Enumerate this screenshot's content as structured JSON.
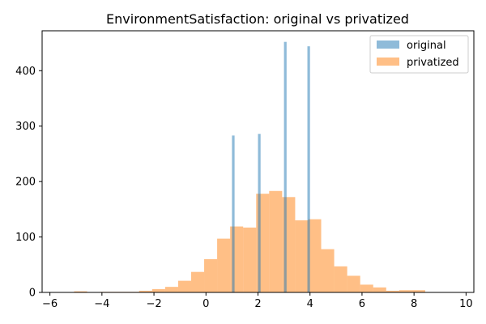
{
  "chart_data": {
    "type": "histogram",
    "title": "EnvironmentSatisfaction: original vs privatized",
    "xlabel": "",
    "ylabel": "",
    "xlim": [
      -6.3,
      10.3
    ],
    "ylim": [
      0,
      472
    ],
    "xticks": [
      -6,
      -4,
      -2,
      0,
      2,
      4,
      6,
      8,
      10
    ],
    "xtick_labels": [
      "−6",
      "−4",
      "−2",
      "0",
      "2",
      "4",
      "6",
      "8",
      "10"
    ],
    "yticks": [
      0,
      100,
      200,
      300,
      400
    ],
    "ytick_labels": [
      "0",
      "100",
      "200",
      "300",
      "400"
    ],
    "grid": false,
    "legend": {
      "position": "upper right"
    },
    "series": [
      {
        "name": "original",
        "color": "#1f77b4",
        "alpha": 0.5,
        "bins": [
          {
            "x0": 1.0,
            "x1": 1.1,
            "count": 283
          },
          {
            "x0": 2.0,
            "x1": 2.1,
            "count": 286
          },
          {
            "x0": 3.0,
            "x1": 3.1,
            "count": 452
          },
          {
            "x0": 3.9,
            "x1": 4.0,
            "count": 444
          }
        ]
      },
      {
        "name": "privatized",
        "color": "#ff7f0e",
        "alpha": 0.5,
        "bins": [
          {
            "x0": -5.07,
            "x1": -4.57,
            "count": 2
          },
          {
            "x0": -4.57,
            "x1": -4.07,
            "count": 0
          },
          {
            "x0": -4.07,
            "x1": -3.57,
            "count": 1
          },
          {
            "x0": -3.57,
            "x1": -3.07,
            "count": 1
          },
          {
            "x0": -3.07,
            "x1": -2.57,
            "count": 1
          },
          {
            "x0": -2.57,
            "x1": -2.07,
            "count": 3
          },
          {
            "x0": -2.07,
            "x1": -1.57,
            "count": 6
          },
          {
            "x0": -1.57,
            "x1": -1.07,
            "count": 10
          },
          {
            "x0": -1.07,
            "x1": -0.57,
            "count": 21
          },
          {
            "x0": -0.57,
            "x1": -0.07,
            "count": 37
          },
          {
            "x0": -0.07,
            "x1": 0.43,
            "count": 60
          },
          {
            "x0": 0.43,
            "x1": 0.93,
            "count": 97
          },
          {
            "x0": 0.93,
            "x1": 1.43,
            "count": 119
          },
          {
            "x0": 1.43,
            "x1": 1.93,
            "count": 117
          },
          {
            "x0": 1.93,
            "x1": 2.43,
            "count": 178
          },
          {
            "x0": 2.43,
            "x1": 2.93,
            "count": 183
          },
          {
            "x0": 2.93,
            "x1": 3.43,
            "count": 172
          },
          {
            "x0": 3.43,
            "x1": 3.93,
            "count": 130
          },
          {
            "x0": 3.93,
            "x1": 4.43,
            "count": 132
          },
          {
            "x0": 4.43,
            "x1": 4.93,
            "count": 78
          },
          {
            "x0": 4.93,
            "x1": 5.43,
            "count": 47
          },
          {
            "x0": 5.43,
            "x1": 5.93,
            "count": 30
          },
          {
            "x0": 5.93,
            "x1": 6.43,
            "count": 14
          },
          {
            "x0": 6.43,
            "x1": 6.93,
            "count": 9
          },
          {
            "x0": 6.93,
            "x1": 7.43,
            "count": 3
          },
          {
            "x0": 7.43,
            "x1": 7.93,
            "count": 4
          },
          {
            "x0": 7.93,
            "x1": 8.43,
            "count": 4
          },
          {
            "x0": 8.43,
            "x1": 8.93,
            "count": 0
          }
        ]
      }
    ]
  }
}
